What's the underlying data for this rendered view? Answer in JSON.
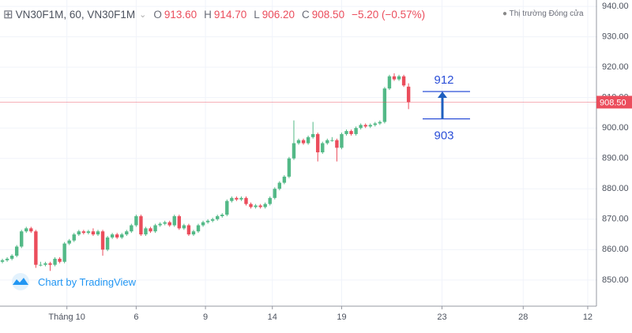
{
  "header": {
    "symbol": "VN30F1M, 60, VN30F1M",
    "open_label": "O",
    "open": "913.60",
    "high_label": "H",
    "high": "914.70",
    "low_label": "L",
    "low": "906.20",
    "close_label": "C",
    "close": "908.50",
    "change": "−5.20 (−0.57%)",
    "status": "Thị trường Đóng cửa"
  },
  "watermark": "Chart by TradingView",
  "chart_data": {
    "type": "candlestick",
    "up_color": "#53b987",
    "down_color": "#eb4d5c",
    "grid": true,
    "xlim": [
      -0.5,
      123.5
    ],
    "ylim": [
      841.4,
      942.1
    ],
    "xticks": [
      {
        "value": 13.5,
        "label": "Tháng 10"
      },
      {
        "value": 28,
        "label": "6"
      },
      {
        "value": 42.5,
        "label": "9"
      },
      {
        "value": 56.5,
        "label": "14"
      },
      {
        "value": 71,
        "label": "19"
      },
      {
        "value": 92,
        "label": "23"
      },
      {
        "value": 109,
        "label": "28"
      },
      {
        "value": 122.5,
        "label": "12"
      }
    ],
    "yticks": [
      {
        "value": 850,
        "label": "850.00"
      },
      {
        "value": 860,
        "label": "860.00"
      },
      {
        "value": 870,
        "label": "870.00"
      },
      {
        "value": 880,
        "label": "880.00"
      },
      {
        "value": 890,
        "label": "890.00"
      },
      {
        "value": 900,
        "label": "900.00"
      },
      {
        "value": 910,
        "label": "910.00"
      },
      {
        "value": 920,
        "label": "920.00"
      },
      {
        "value": 930,
        "label": "930.00"
      },
      {
        "value": 940,
        "label": "940.00"
      }
    ],
    "last_price": {
      "value": 908.5,
      "label": "908.50"
    },
    "annotation": {
      "high": 912,
      "low": 903,
      "color": "#2b4fd8"
    },
    "ohlc": [
      [
        856,
        857,
        855.5,
        856.5
      ],
      [
        856.5,
        857.5,
        856,
        857
      ],
      [
        857,
        858.5,
        856.5,
        858
      ],
      [
        858,
        861.5,
        857.5,
        861
      ],
      [
        861,
        866.5,
        860.5,
        866
      ],
      [
        866,
        867.5,
        865.5,
        867
      ],
      [
        867,
        867.5,
        865.5,
        866
      ],
      [
        866,
        866.5,
        854,
        855
      ],
      [
        855,
        856,
        854.5,
        855
      ],
      [
        855,
        856,
        854.5,
        855.5
      ],
      [
        855.5,
        856,
        853,
        855
      ],
      [
        855,
        857.5,
        854.5,
        857
      ],
      [
        857,
        857.5,
        855.5,
        856
      ],
      [
        856,
        862.5,
        855.5,
        862
      ],
      [
        862,
        863.5,
        861.5,
        863
      ],
      [
        863,
        865.5,
        862.5,
        865
      ],
      [
        865,
        866.5,
        864.5,
        866
      ],
      [
        866,
        866.5,
        865,
        865.5
      ],
      [
        865.5,
        866.5,
        865,
        866
      ],
      [
        866,
        867,
        864.5,
        865
      ],
      [
        865,
        866.5,
        864.5,
        866
      ],
      [
        866,
        866.5,
        858,
        860
      ],
      [
        860,
        864.5,
        859.5,
        864
      ],
      [
        864,
        865.5,
        863.5,
        865
      ],
      [
        865,
        865.5,
        863.5,
        864
      ],
      [
        864,
        865.5,
        863.5,
        865
      ],
      [
        865,
        866.5,
        864.5,
        866
      ],
      [
        866,
        868.5,
        865.5,
        868
      ],
      [
        868,
        871.5,
        867.5,
        871
      ],
      [
        871,
        871.5,
        864.5,
        865
      ],
      [
        865,
        867.5,
        864.5,
        867
      ],
      [
        867,
        867.5,
        865.5,
        866
      ],
      [
        866,
        868.5,
        865.5,
        868
      ],
      [
        868,
        869,
        867.5,
        868.5
      ],
      [
        868.5,
        869.5,
        868,
        869
      ],
      [
        869,
        869.5,
        867.5,
        868
      ],
      [
        868,
        871.5,
        867.5,
        871
      ],
      [
        871,
        871.5,
        866.5,
        867
      ],
      [
        867,
        868.5,
        866.5,
        868
      ],
      [
        868,
        868.5,
        864.5,
        865
      ],
      [
        865,
        866.5,
        864.5,
        866
      ],
      [
        866,
        868.5,
        865.5,
        868
      ],
      [
        868,
        869.5,
        867.5,
        869
      ],
      [
        869,
        870,
        868.5,
        869.5
      ],
      [
        869.5,
        870.5,
        869,
        870
      ],
      [
        870,
        871.5,
        869.5,
        871
      ],
      [
        871,
        872,
        870.5,
        871.5
      ],
      [
        871.5,
        876.5,
        871,
        876
      ],
      [
        876,
        877.5,
        875.5,
        877
      ],
      [
        877,
        877.5,
        876,
        876.5
      ],
      [
        876.5,
        877.5,
        876,
        877
      ],
      [
        877,
        877.5,
        874.5,
        875
      ],
      [
        875,
        875.5,
        873.5,
        874
      ],
      [
        874,
        875,
        873.5,
        874.5
      ],
      [
        874.5,
        875,
        873.5,
        874
      ],
      [
        874,
        875.5,
        873.5,
        875
      ],
      [
        875,
        877.5,
        874.5,
        877
      ],
      [
        877,
        880.5,
        876.5,
        880
      ],
      [
        880,
        882.5,
        879.5,
        882
      ],
      [
        882,
        884.5,
        881.5,
        884
      ],
      [
        884,
        890.5,
        883.5,
        890
      ],
      [
        890,
        902.5,
        889.5,
        895
      ],
      [
        895,
        896.5,
        894.5,
        896
      ],
      [
        896,
        896.5,
        894.5,
        895
      ],
      [
        895,
        897.5,
        894.5,
        897
      ],
      [
        897,
        902,
        896.5,
        898
      ],
      [
        898,
        898.5,
        889,
        892
      ],
      [
        892,
        895.5,
        891.5,
        895
      ],
      [
        895,
        896.5,
        894.5,
        896
      ],
      [
        896,
        897,
        895.5,
        896
      ],
      [
        896,
        896.5,
        889,
        893.5
      ],
      [
        893.5,
        898.5,
        893,
        898
      ],
      [
        898,
        899.5,
        897.5,
        899
      ],
      [
        899,
        899.5,
        897.5,
        898
      ],
      [
        898,
        900.5,
        897.5,
        900
      ],
      [
        900,
        901.5,
        899.5,
        901
      ],
      [
        901,
        901.5,
        900,
        900.5
      ],
      [
        900.5,
        901.5,
        900,
        901
      ],
      [
        901,
        902,
        900.5,
        901.5
      ],
      [
        901.5,
        902.5,
        901,
        902
      ],
      [
        902,
        913.5,
        901.5,
        913
      ],
      [
        913,
        917.5,
        912.5,
        917
      ],
      [
        917,
        918,
        915.5,
        916
      ],
      [
        916,
        917.5,
        915.5,
        917
      ],
      [
        917,
        917.5,
        913.5,
        914
      ],
      [
        913.6,
        914.7,
        906.2,
        908.5
      ]
    ]
  }
}
